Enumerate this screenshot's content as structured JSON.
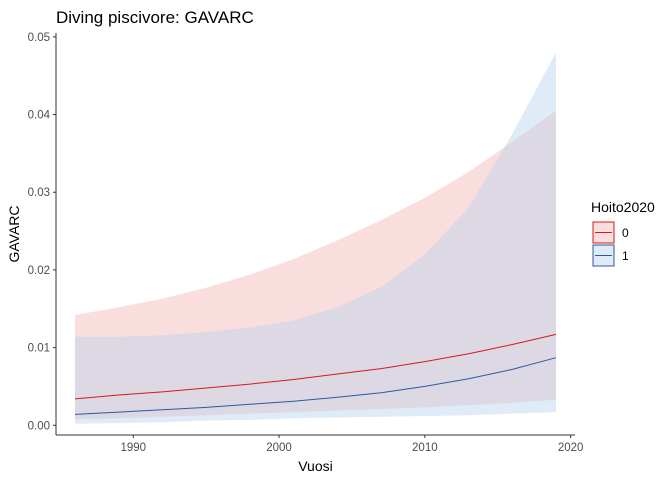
{
  "chart_data": {
    "type": "line",
    "title": "Diving piscivore: GAVARC",
    "xlabel": "Vuosi",
    "ylabel": "GAVARC",
    "xlim": [
      1984.7,
      2020.3
    ],
    "ylim": [
      -0.00125,
      0.0505
    ],
    "x_ticks": [
      1990,
      2000,
      2010,
      2020
    ],
    "x_tick_labels": [
      "1990",
      "2000",
      "2010",
      "2020"
    ],
    "y_ticks": [
      0,
      0.01,
      0.02,
      0.03,
      0.04,
      0.05
    ],
    "y_tick_labels": [
      "0.00",
      "0.01",
      "0.02",
      "0.03",
      "0.04",
      "0.05"
    ],
    "grid": false,
    "legend": {
      "title": "Hoito2020",
      "position": "right",
      "entries": [
        {
          "label": "0",
          "line_color": "#d7191c",
          "fill_color": "#f4b6b6"
        },
        {
          "label": "1",
          "line_color": "#2c5aa0",
          "fill_color": "#b9d3ea"
        }
      ]
    },
    "x": [
      1986,
      1989,
      1992,
      1995,
      1998,
      2001,
      2004,
      2007,
      2010,
      2013,
      2016,
      2019
    ],
    "series": [
      {
        "name": "0",
        "line_color": "#d7191c",
        "fill_color": "#f4b6b6",
        "values": [
          0.0034,
          0.0039,
          0.0043,
          0.0048,
          0.0053,
          0.0059,
          0.0066,
          0.0073,
          0.0082,
          0.0092,
          0.0104,
          0.0117
        ],
        "lower": [
          0.0008,
          0.0009,
          0.0011,
          0.0013,
          0.0015,
          0.0017,
          0.0019,
          0.0021,
          0.0023,
          0.0026,
          0.0029,
          0.0033
        ],
        "upper": [
          0.0142,
          0.0152,
          0.0163,
          0.0177,
          0.0194,
          0.0214,
          0.0238,
          0.0264,
          0.0293,
          0.0326,
          0.0365,
          0.0405
        ]
      },
      {
        "name": "1",
        "line_color": "#2c5aa0",
        "fill_color": "#b9d3ea",
        "values": [
          0.0014,
          0.0017,
          0.002,
          0.0023,
          0.0027,
          0.0031,
          0.0036,
          0.0042,
          0.005,
          0.006,
          0.0072,
          0.0087
        ],
        "lower": [
          0.0002,
          0.0003,
          0.0004,
          0.0006,
          0.0007,
          0.0009,
          0.001,
          0.0011,
          0.0012,
          0.0013,
          0.0015,
          0.0017
        ],
        "upper": [
          0.0114,
          0.0114,
          0.0116,
          0.012,
          0.0126,
          0.0135,
          0.0152,
          0.0178,
          0.022,
          0.028,
          0.0375,
          0.048
        ]
      }
    ]
  }
}
